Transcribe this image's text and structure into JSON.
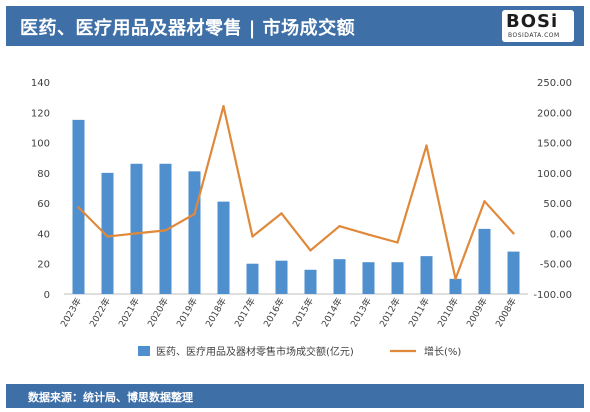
{
  "header": {
    "title": "医药、医疗用品及器材零售 | 市场成交额",
    "logo_text": "BOSi",
    "logo_subtext": "BOSIDATA.COM"
  },
  "footer": {
    "source": "数据来源：统计局、博思数据整理"
  },
  "colors": {
    "header_bg": "#3e6fa6",
    "bar": "#4f8fce",
    "line": "#e0893b",
    "axis_text": "#404040"
  },
  "chart_data": {
    "type": "bar",
    "categories": [
      "2023年",
      "2022年",
      "2021年",
      "2020年",
      "2019年",
      "2018年",
      "2017年",
      "2016年",
      "2015年",
      "2014年",
      "2013年",
      "2012年",
      "2011年",
      "2010年",
      "2009年",
      "2008年"
    ],
    "series": [
      {
        "name": "医药、医疗用品及器材零售市场成交额(亿元)",
        "type": "bar",
        "axis": "left",
        "values": [
          115,
          80,
          86,
          86,
          81,
          61,
          20,
          22,
          16,
          23,
          21,
          21,
          25,
          10,
          43,
          28
        ]
      },
      {
        "name": "增长(%)",
        "type": "line",
        "axis": "right",
        "values": [
          43,
          -5,
          0,
          5,
          32,
          210,
          -5,
          33,
          -28,
          12,
          -2,
          -15,
          145,
          -75,
          53,
          0
        ]
      }
    ],
    "left_axis": {
      "ylim": [
        0,
        140
      ],
      "ticks": [
        "0",
        "20",
        "40",
        "60",
        "80",
        "100",
        "120",
        "140"
      ]
    },
    "right_axis": {
      "ylim": [
        -100,
        250
      ],
      "ticks": [
        "-100.00",
        "-50.00",
        "0.00",
        "50.00",
        "100.00",
        "150.00",
        "200.00",
        "250.00"
      ]
    },
    "legend": {
      "position": "bottom"
    },
    "grid": false
  }
}
